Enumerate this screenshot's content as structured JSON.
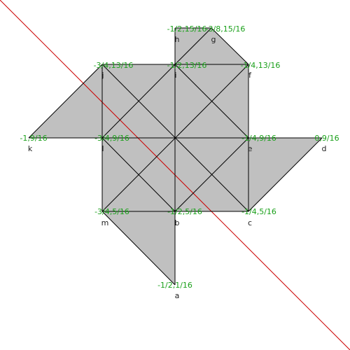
{
  "colors": {
    "background": "#ffffff",
    "face_fill": "#c0c0c0",
    "edge": "#000000",
    "diagonal": "#cc0000",
    "coord_label": "#1aa01a",
    "vertex_label": "#222222"
  },
  "vertices": [
    {
      "name": "a",
      "coord": "-1/2,1/16"
    },
    {
      "name": "b",
      "coord": "-1/2,5/16"
    },
    {
      "name": "c",
      "coord": "-1/4,5/16"
    },
    {
      "name": "d",
      "coord": "0,9/16"
    },
    {
      "name": "e",
      "coord": "-1/4,9/16"
    },
    {
      "name": "f",
      "coord": "-1/4,13/16"
    },
    {
      "name": "g",
      "coord": "-3/8,15/16"
    },
    {
      "name": "h",
      "coord": "-1/2,15/16"
    },
    {
      "name": "i",
      "coord": "-1/2,13/16"
    },
    {
      "name": "j",
      "coord": "-3/4,13/16"
    },
    {
      "name": "k",
      "coord": "-1,9/16"
    },
    {
      "name": "l",
      "coord": "-3/4,9/16"
    },
    {
      "name": "m",
      "coord": "-3/4,5/16"
    }
  ]
}
